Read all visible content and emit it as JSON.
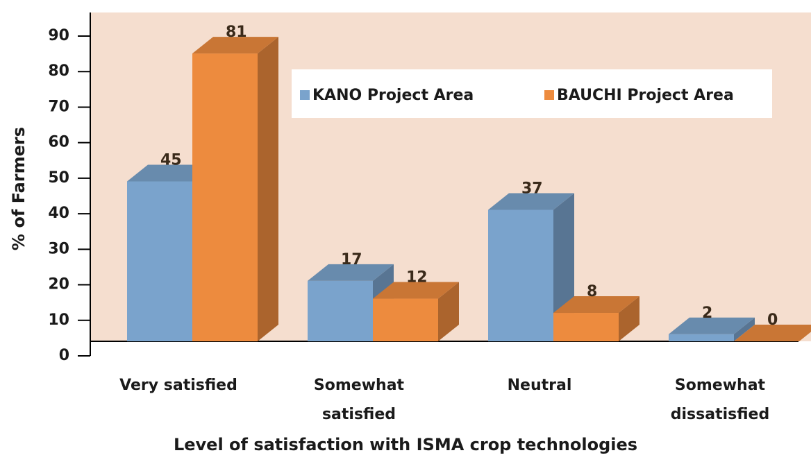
{
  "chart_data": {
    "type": "bar3d",
    "x_label": "Level of satisfaction with ISMA crop technologies",
    "y_label": "% of Farmers",
    "categories": [
      [
        "Very satisfied"
      ],
      [
        "Somewhat",
        "satisfied"
      ],
      [
        "Neutral"
      ],
      [
        "Somewhat",
        "dissatisfied"
      ]
    ],
    "series": [
      {
        "name": "KANO Project Area",
        "color": "#7aa3cc",
        "values": [
          45,
          17,
          37,
          2
        ]
      },
      {
        "name": "BAUCHI Project Area",
        "color": "#ed8b3e",
        "values": [
          81,
          12,
          8,
          0
        ]
      }
    ],
    "ylim": [
      0,
      90
    ],
    "yticks": [
      0,
      10,
      20,
      30,
      40,
      50,
      60,
      70,
      80,
      90
    ],
    "legend": "top-right"
  }
}
